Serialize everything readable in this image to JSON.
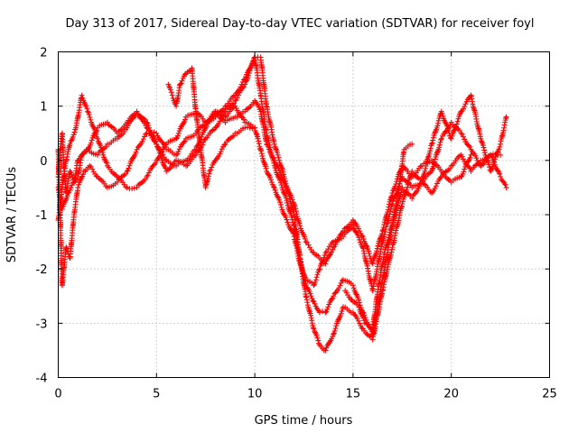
{
  "chart_data": {
    "type": "scatter",
    "title": "Day 313 of 2017, Sidereal Day-to-day VTEC variation (SDTVAR) for receiver foyl",
    "xlabel": "GPS time / hours",
    "ylabel": "SDTVAR / TECUs",
    "xlim": [
      0,
      25
    ],
    "ylim": [
      -4,
      2
    ],
    "xticks": [
      "0",
      "5",
      "10",
      "15",
      "20",
      "25"
    ],
    "yticks": [
      "-4",
      "-3",
      "-2",
      "-1",
      "0",
      "1",
      "2"
    ],
    "xtick_values": [
      0,
      5,
      10,
      15,
      20,
      25
    ],
    "ytick_values": [
      -4,
      -3,
      -2,
      -1,
      0,
      1,
      2
    ],
    "grid": true,
    "marker": "+",
    "series_color": "#ff0000",
    "series": [
      {
        "x": [
          0.0,
          0.1,
          0.2,
          0.3,
          0.4,
          0.6,
          0.8,
          1.0,
          1.2,
          1.5,
          2.0,
          2.5,
          3.0,
          3.5,
          4.0,
          4.5,
          5.0,
          5.5,
          6.0,
          6.5,
          7.0,
          7.5,
          8.0,
          8.5,
          9.0,
          9.5,
          10.0,
          10.3,
          10.6,
          11.0,
          11.5,
          12.0,
          12.3,
          12.6,
          13.0,
          13.3,
          13.6,
          14.0,
          14.5,
          15.0,
          15.5,
          16.0,
          16.5,
          17.0,
          17.5,
          18.0,
          18.5,
          19.0,
          19.5,
          20.0,
          20.5,
          21.0,
          21.5,
          22.0,
          22.5,
          22.8
        ],
        "y": [
          -0.3,
          0.2,
          0.5,
          -0.2,
          -0.6,
          -0.2,
          -0.4,
          -0.3,
          0.1,
          0.2,
          0.6,
          0.7,
          0.5,
          0.7,
          0.9,
          0.7,
          0.3,
          -0.2,
          0.0,
          -0.1,
          0.1,
          0.4,
          0.6,
          0.9,
          1.1,
          1.4,
          1.9,
          1.9,
          1.0,
          0.3,
          -0.3,
          -1.0,
          -1.8,
          -2.5,
          -3.1,
          -3.4,
          -3.5,
          -3.2,
          -2.7,
          -2.8,
          -3.1,
          -3.3,
          -2.4,
          -1.6,
          -0.8,
          -0.2,
          -0.4,
          0.3,
          0.9,
          0.4,
          0.9,
          1.2,
          0.4,
          -0.2,
          0.3,
          0.8
        ]
      },
      {
        "x": [
          0.0,
          0.2,
          0.4,
          0.6,
          0.9,
          1.2,
          1.5,
          2.0,
          2.5,
          3.0,
          3.5,
          4.0,
          4.5,
          5.0,
          5.5,
          6.0,
          6.5,
          7.0,
          7.5,
          8.0,
          8.5,
          9.0,
          9.5,
          10.0,
          10.3,
          10.6,
          11.0,
          11.5,
          12.0,
          12.3,
          12.6,
          13.0,
          13.3,
          13.6,
          14.0,
          14.5,
          15.0,
          15.5,
          16.0,
          16.5,
          17.0,
          17.5,
          18.0,
          18.5,
          19.0,
          19.5,
          20.0,
          20.5,
          21.0,
          21.5,
          22.0,
          22.5,
          22.8
        ],
        "y": [
          -1.1,
          -0.5,
          0.0,
          0.3,
          0.6,
          1.2,
          0.9,
          0.4,
          -0.1,
          -0.3,
          -0.5,
          -0.5,
          -0.3,
          0.0,
          0.3,
          0.4,
          0.8,
          0.9,
          0.7,
          0.8,
          1.0,
          1.2,
          1.5,
          1.9,
          1.2,
          0.5,
          -0.1,
          -0.6,
          -1.2,
          -1.8,
          -2.3,
          -2.6,
          -2.8,
          -2.8,
          -2.5,
          -2.2,
          -2.3,
          -2.8,
          -3.2,
          -2.2,
          -1.2,
          -0.5,
          -0.7,
          -0.4,
          -0.2,
          0.4,
          0.7,
          0.5,
          0.2,
          -0.1,
          0.1,
          -0.3,
          -0.5
        ]
      },
      {
        "x": [
          0.0,
          0.2,
          0.4,
          0.6,
          0.8,
          1.0,
          1.3,
          1.6,
          2.0,
          2.5,
          3.0,
          3.5,
          4.0,
          4.5,
          5.0,
          5.5,
          6.0,
          6.5,
          7.0,
          7.5,
          8.0,
          8.5,
          9.0,
          9.5,
          10.0,
          10.3,
          10.6,
          11.0,
          11.5,
          12.0,
          12.3,
          12.6,
          13.0,
          13.3,
          13.6,
          14.0,
          14.5,
          15.0,
          15.5,
          16.0,
          16.5,
          17.0,
          17.5,
          18.0,
          18.5,
          19.0,
          19.5,
          20.0,
          20.5,
          21.0,
          21.5,
          22.0,
          22.5
        ],
        "y": [
          0.2,
          -2.3,
          -1.6,
          -1.8,
          -1.0,
          -0.5,
          -0.2,
          -0.1,
          -0.3,
          -0.5,
          -0.4,
          -0.2,
          0.2,
          0.5,
          0.5,
          0.2,
          0.1,
          0.4,
          0.5,
          0.7,
          0.9,
          0.8,
          1.0,
          0.7,
          0.6,
          0.2,
          -0.2,
          -0.5,
          -1.0,
          -1.4,
          -1.9,
          -2.2,
          -2.3,
          -2.0,
          -1.7,
          -1.5,
          -1.4,
          -1.2,
          -1.6,
          -2.4,
          -1.5,
          -0.8,
          -0.3,
          -0.5,
          -0.4,
          -0.6,
          -0.3,
          -0.1,
          0.1,
          -0.2,
          0.0,
          0.1,
          0.1
        ]
      },
      {
        "x": [
          0.0,
          0.2,
          0.5,
          0.8,
          1.0,
          1.5,
          2.0,
          2.5,
          3.0,
          3.5,
          4.0,
          4.5,
          5.0,
          5.5,
          6.0,
          6.5,
          7.0,
          7.5,
          8.0,
          8.5,
          9.0,
          9.5,
          10.0,
          10.3,
          10.6,
          11.0,
          11.5,
          12.0,
          12.3,
          12.6,
          13.0,
          13.3,
          13.6,
          14.0,
          14.5,
          15.0,
          15.5,
          16.0,
          16.5,
          17.0,
          17.5,
          18.0,
          18.5,
          19.0,
          19.5,
          20.0,
          20.5,
          21.0
        ],
        "y": [
          -0.5,
          -0.9,
          -0.6,
          -0.4,
          0.0,
          0.2,
          0.1,
          0.3,
          0.4,
          0.6,
          0.9,
          0.6,
          0.3,
          0.0,
          -0.1,
          0.0,
          0.2,
          0.6,
          0.9,
          0.7,
          0.8,
          0.9,
          1.1,
          0.9,
          0.3,
          0.0,
          -0.4,
          -0.8,
          -1.2,
          -1.5,
          -1.7,
          -1.8,
          -1.9,
          -1.6,
          -1.3,
          -1.1,
          -1.4,
          -1.9,
          -1.3,
          -0.6,
          -0.1,
          -0.3,
          -0.1,
          0.0,
          -0.2,
          -0.4,
          -0.3,
          0.1
        ]
      },
      {
        "x": [
          5.6,
          5.8,
          6.0,
          6.2,
          6.5,
          6.8,
          7.0,
          7.5,
          7.7,
          8.0,
          8.5,
          9.0,
          9.5,
          10.0
        ],
        "y": [
          1.4,
          1.2,
          1.0,
          1.4,
          1.6,
          1.7,
          0.9,
          -0.5,
          -0.2,
          0.0,
          0.3,
          0.5,
          0.6,
          0.6
        ]
      },
      {
        "x": [
          14.6,
          15.0,
          15.3,
          15.6,
          16.0,
          16.3,
          16.6,
          17.0,
          17.3,
          17.6,
          18.0
        ],
        "y": [
          -2.4,
          -2.6,
          -2.7,
          -3.0,
          -3.1,
          -2.3,
          -1.7,
          -1.2,
          -0.6,
          0.2,
          0.3
        ]
      }
    ]
  }
}
